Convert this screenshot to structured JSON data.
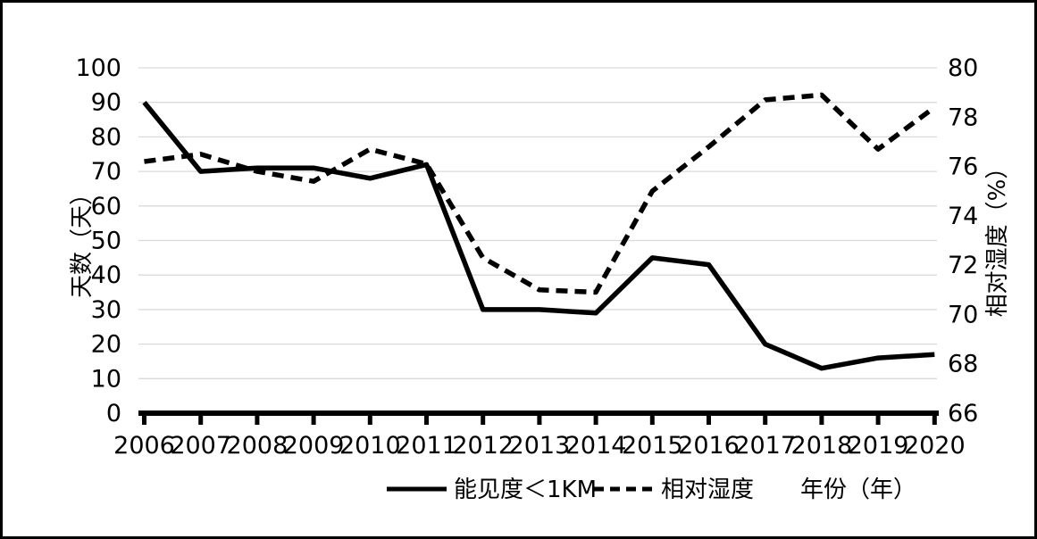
{
  "chart_data": {
    "type": "line",
    "title": "",
    "x": [
      "2006",
      "2007",
      "2008",
      "2009",
      "2010",
      "2011",
      "2012",
      "2013",
      "2014",
      "2015",
      "2016",
      "2017",
      "2018",
      "2019",
      "2020"
    ],
    "series": [
      {
        "name": "能见度＜1KM",
        "axis": "left",
        "style": "solid",
        "color": "#000000",
        "values": [
          90,
          70,
          71,
          71,
          68,
          72,
          30,
          30,
          29,
          45,
          43,
          20,
          13,
          16,
          17
        ]
      },
      {
        "name": "相对湿度",
        "axis": "right",
        "style": "dashed",
        "color": "#000000",
        "values": [
          76.2,
          76.5,
          75.8,
          75.4,
          76.7,
          76.1,
          72.3,
          71.0,
          70.9,
          75.0,
          76.8,
          78.7,
          78.9,
          76.7,
          78.4
        ]
      }
    ],
    "xlabel": "年份（年）",
    "ylabel_left": "天数（天）",
    "ylabel_right": "相对湿度（%）",
    "y_left_axis": {
      "min": 0,
      "max": 100,
      "step": 10,
      "ticks": [
        "0",
        "10",
        "20",
        "30",
        "40",
        "50",
        "60",
        "70",
        "80",
        "90",
        "100"
      ]
    },
    "y_right_axis": {
      "min": 66,
      "max": 80,
      "step": 2,
      "ticks": [
        "66",
        "68",
        "70",
        "72",
        "74",
        "76",
        "78",
        "80"
      ]
    },
    "grid": true,
    "legend_position": "bottom",
    "colors": {
      "line": "#000000",
      "grid": "#d9d9d9",
      "background": "#ffffff",
      "border": "#000000",
      "text": "#000000"
    }
  }
}
